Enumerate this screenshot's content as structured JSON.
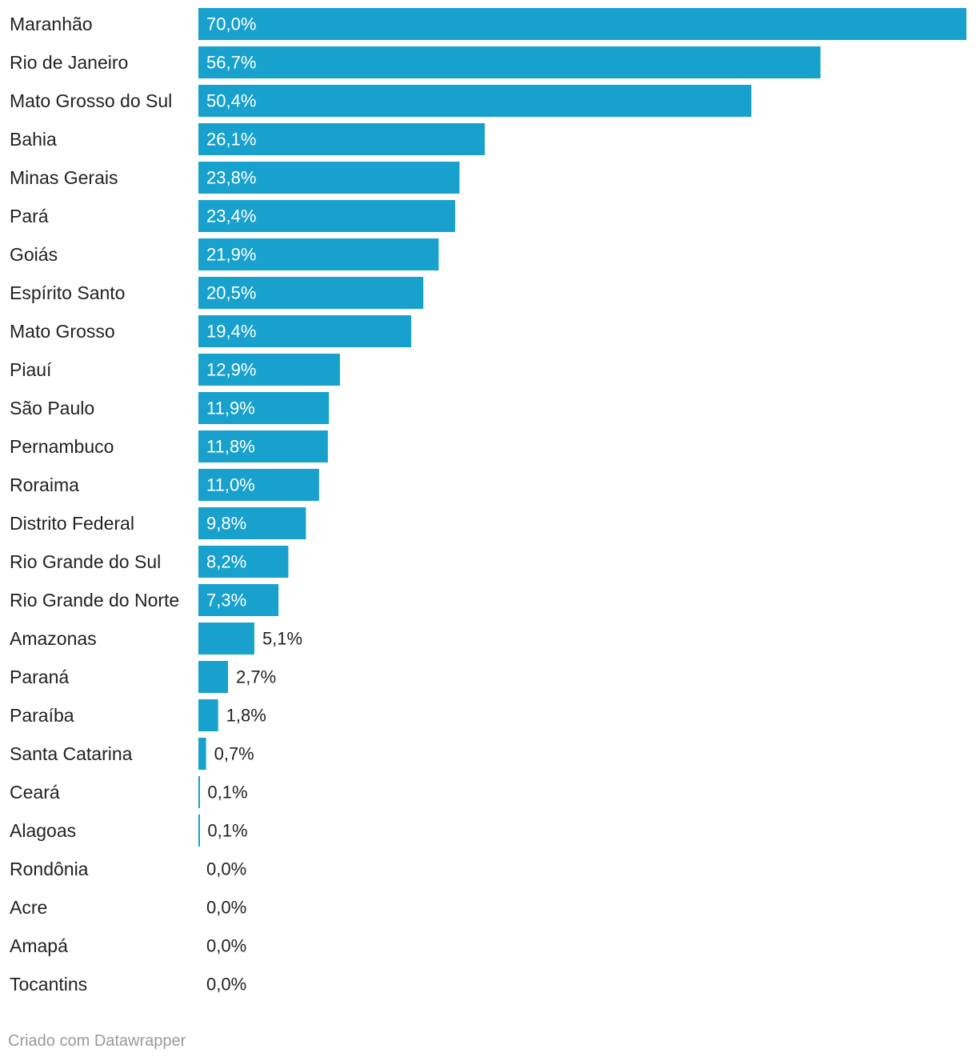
{
  "chart_data": {
    "type": "bar",
    "orientation": "horizontal",
    "categories": [
      "Maranhão",
      "Rio de Janeiro",
      "Mato Grosso do Sul",
      "Bahia",
      "Minas Gerais",
      "Pará",
      "Goiás",
      "Espírito Santo",
      "Mato Grosso",
      "Piauí",
      "São Paulo",
      "Pernambuco",
      "Roraima",
      "Distrito Federal",
      "Rio Grande do Sul",
      "Rio Grande do Norte",
      "Amazonas",
      "Paraná",
      "Paraíba",
      "Santa Catarina",
      "Ceará",
      "Alagoas",
      "Rondônia",
      "Acre",
      "Amapá",
      "Tocantins"
    ],
    "values": [
      70.0,
      56.7,
      50.4,
      26.1,
      23.8,
      23.4,
      21.9,
      20.5,
      19.4,
      12.9,
      11.9,
      11.8,
      11.0,
      9.8,
      8.2,
      7.3,
      5.1,
      2.7,
      1.8,
      0.7,
      0.1,
      0.1,
      0.0,
      0.0,
      0.0,
      0.0
    ],
    "value_labels": [
      "70,0%",
      "56,7%",
      "50,4%",
      "26,1%",
      "23,8%",
      "23,4%",
      "21,9%",
      "20,5%",
      "19,4%",
      "12,9%",
      "11,9%",
      "11,8%",
      "11,0%",
      "9,8%",
      "8,2%",
      "7,3%",
      "5,1%",
      "2,7%",
      "1,8%",
      "0,7%",
      "0,1%",
      "0,1%",
      "0,0%",
      "0,0%",
      "0,0%",
      "0,0%"
    ],
    "xlim": [
      0,
      70
    ],
    "grid": false,
    "bar_color": "#18a1cd"
  },
  "footer": {
    "credit": "Criado com Datawrapper"
  }
}
